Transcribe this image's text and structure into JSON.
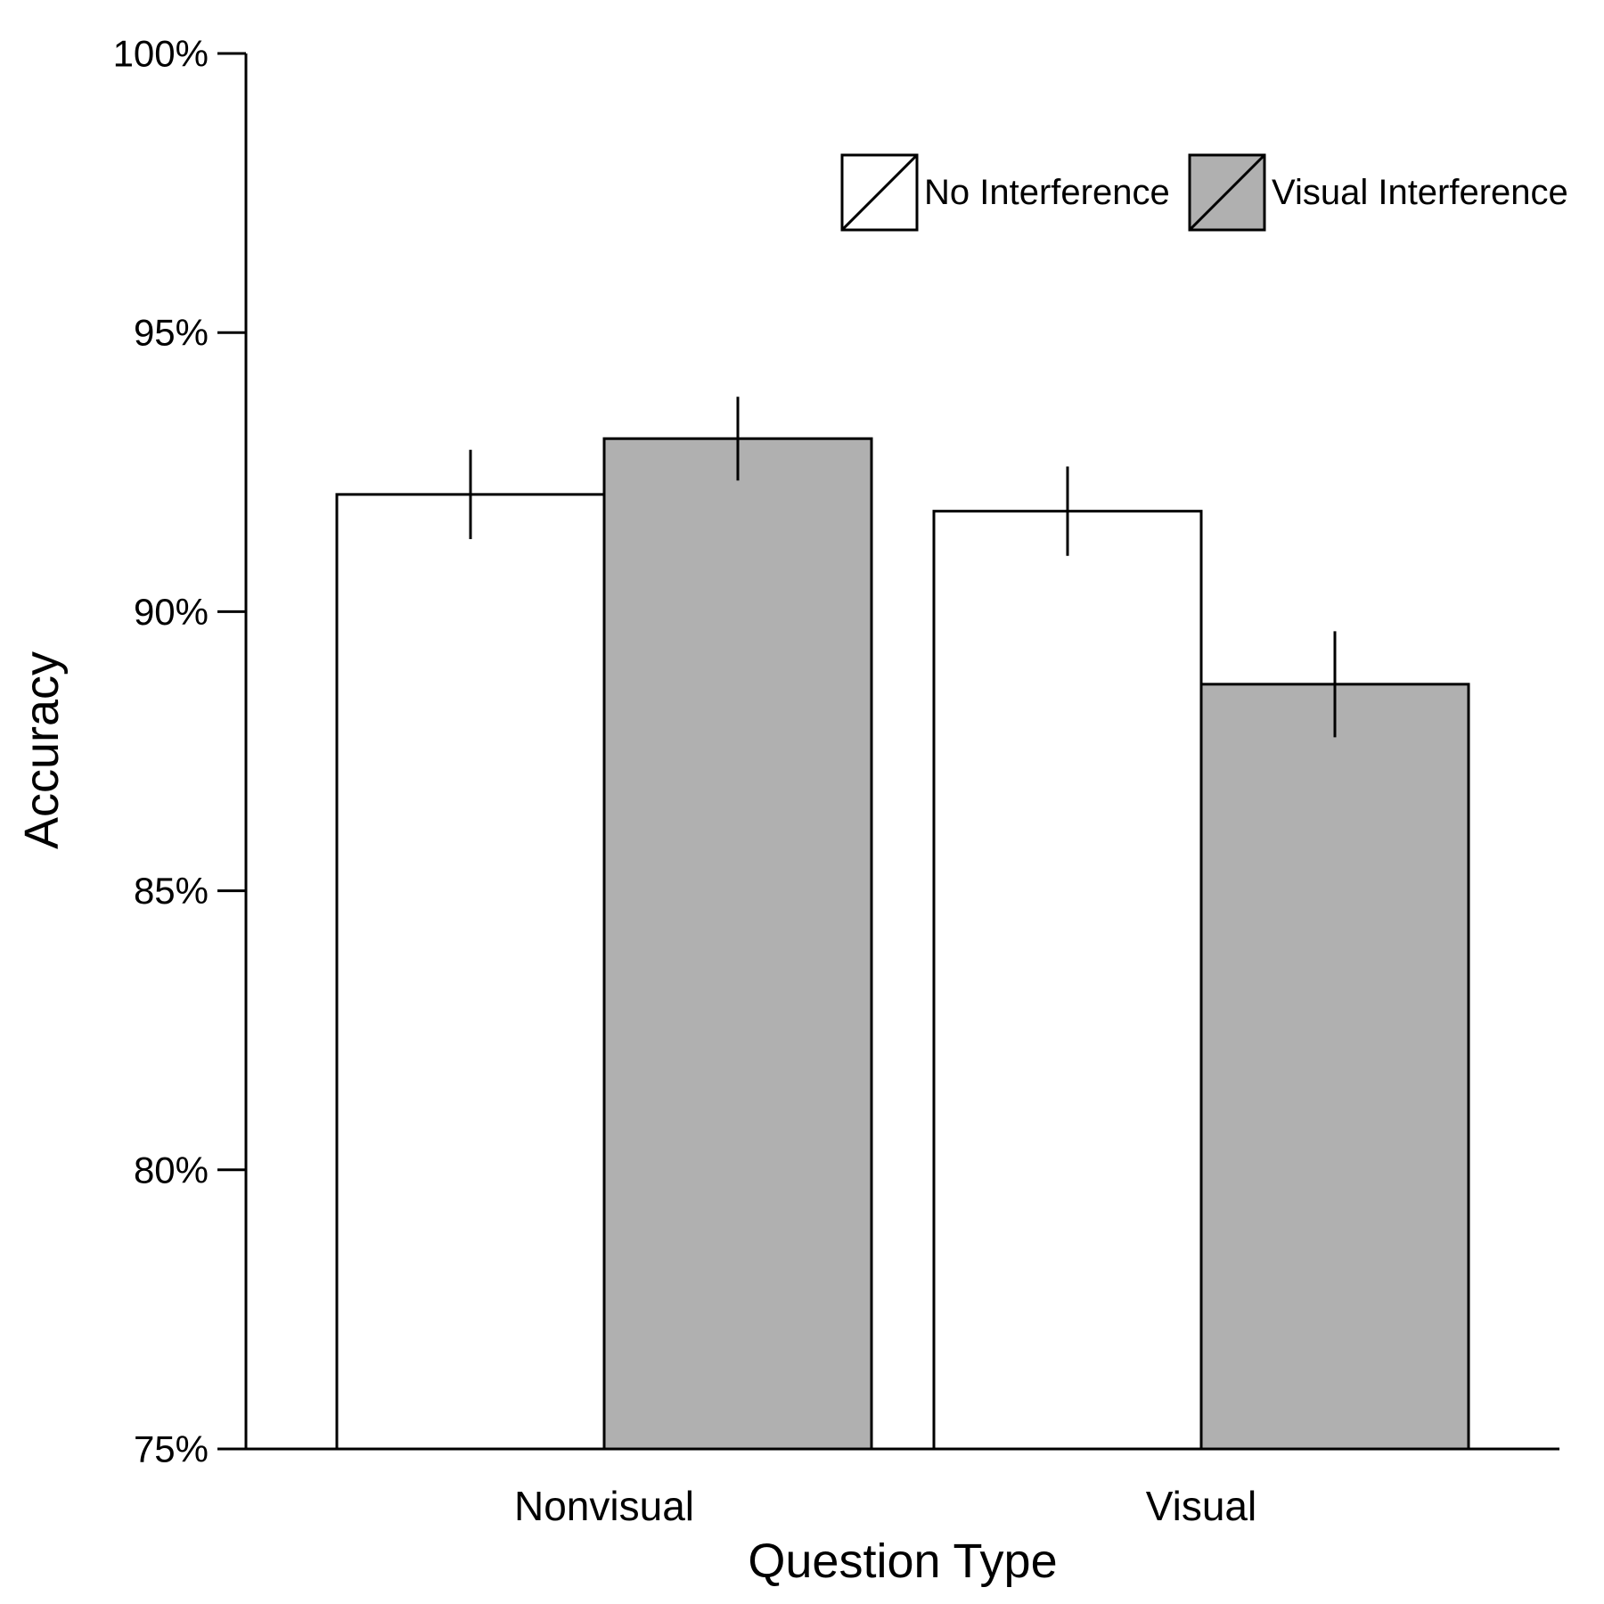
{
  "chart_data": {
    "type": "bar",
    "categories": [
      "Nonvisual",
      "Visual"
    ],
    "series": [
      {
        "name": "No Interference",
        "values": [
          92.1,
          91.8
        ],
        "errors": [
          0.8,
          0.8
        ],
        "color": "#ffffff"
      },
      {
        "name": "Visual Interference",
        "values": [
          93.1,
          88.7
        ],
        "errors": [
          0.75,
          0.95
        ],
        "color": "#b0b0b0"
      }
    ],
    "xlabel": "Question Type",
    "ylabel": "Accuracy",
    "ylim": [
      75,
      100
    ],
    "yticks": [
      75,
      80,
      85,
      90,
      95,
      100
    ],
    "ytick_labels": [
      "75%",
      "80%",
      "85%",
      "90%",
      "95%",
      "100%"
    ],
    "legend_position": "top-right",
    "grid": false
  }
}
